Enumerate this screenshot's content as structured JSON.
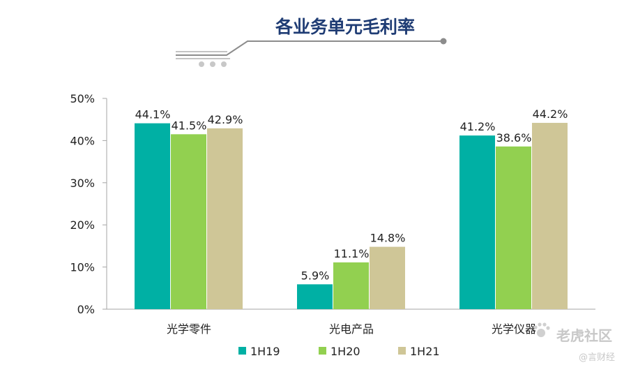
{
  "chart_data": {
    "type": "bar",
    "title": "各业务单元毛利率",
    "categories": [
      "光学零件",
      "光电产品",
      "光学仪器"
    ],
    "series": [
      {
        "name": "1H19",
        "color": "#00b0a4",
        "values": [
          44.1,
          5.9,
          41.2
        ],
        "labels": [
          "44.1%",
          "5.9%",
          "41.2%"
        ]
      },
      {
        "name": "1H20",
        "color": "#92d050",
        "values": [
          41.5,
          11.1,
          38.6
        ],
        "labels": [
          "41.5%",
          "11.1%",
          "38.6%"
        ]
      },
      {
        "name": "1H21",
        "color": "#cfc697",
        "values": [
          42.9,
          14.8,
          44.2
        ],
        "labels": [
          "42.9%",
          "14.8%",
          "44.2%"
        ]
      }
    ],
    "yticks": [
      "0%",
      "10%",
      "20%",
      "30%",
      "40%",
      "50%"
    ],
    "ylim": [
      0,
      50
    ],
    "grid": false,
    "legend": "bottom"
  },
  "watermark": {
    "main": "老虎社区",
    "sub": "@言财经"
  }
}
